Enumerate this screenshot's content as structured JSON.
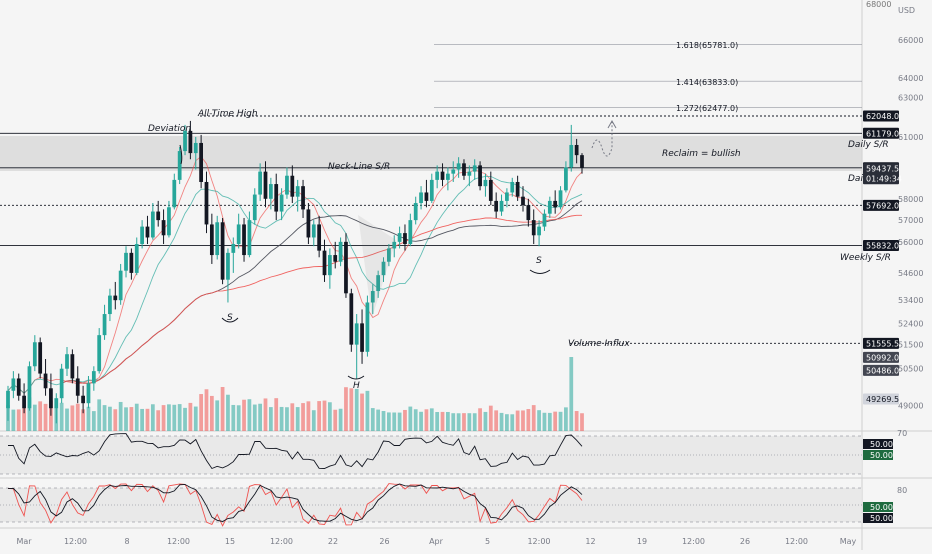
{
  "chart_data": {
    "type": "candlestick",
    "currency": "USD",
    "price_axis": {
      "scale": "log",
      "range": [
        48000,
        68200
      ],
      "ticks": [
        68000,
        66000,
        64000,
        63000,
        61000,
        58000,
        57000,
        56000,
        54600,
        53400,
        52400,
        51500,
        50500,
        49000
      ]
    },
    "time_axis": {
      "labels": [
        "Mar",
        "12:00",
        "8",
        "12:00",
        "15",
        "12:00",
        "22",
        "26",
        "Apr",
        "5",
        "12:00",
        "12",
        "19",
        "12:00",
        "26",
        "12:00",
        "May"
      ]
    },
    "candles_ohlc": [
      [
        48900,
        49800,
        48400,
        49600
      ],
      [
        49600,
        50400,
        49300,
        50100
      ],
      [
        50100,
        50300,
        49200,
        49400
      ],
      [
        49400,
        49900,
        48700,
        48900
      ],
      [
        48900,
        50800,
        48800,
        50600
      ],
      [
        50600,
        51900,
        50400,
        51600
      ],
      [
        51600,
        51800,
        50100,
        50300
      ],
      [
        50300,
        50900,
        49400,
        49700
      ],
      [
        49700,
        50300,
        48600,
        48900
      ],
      [
        48900,
        49500,
        48300,
        49300
      ],
      [
        49300,
        50700,
        49100,
        50500
      ],
      [
        50500,
        51400,
        50200,
        51100
      ],
      [
        51100,
        51300,
        49900,
        50100
      ],
      [
        50100,
        50600,
        49100,
        49400
      ],
      [
        49400,
        49800,
        48700,
        49100
      ],
      [
        49100,
        50200,
        48900,
        49900
      ],
      [
        49900,
        50600,
        49600,
        50400
      ],
      [
        50400,
        52200,
        50300,
        51900
      ],
      [
        51900,
        53200,
        51700,
        52800
      ],
      [
        52800,
        53900,
        52500,
        53600
      ],
      [
        53600,
        54200,
        53000,
        53400
      ],
      [
        53400,
        55000,
        53200,
        54700
      ],
      [
        54700,
        55800,
        54400,
        55500
      ],
      [
        55500,
        55700,
        54300,
        54600
      ],
      [
        54600,
        56200,
        54500,
        55900
      ],
      [
        55900,
        57000,
        55700,
        56700
      ],
      [
        56700,
        57200,
        55900,
        56200
      ],
      [
        56200,
        57800,
        56100,
        57400
      ],
      [
        57400,
        57900,
        56700,
        57000
      ],
      [
        57000,
        57500,
        55900,
        56300
      ],
      [
        56300,
        57900,
        56200,
        57600
      ],
      [
        57600,
        59200,
        57500,
        58900
      ],
      [
        58900,
        60500,
        58700,
        60300
      ],
      [
        60300,
        61600,
        60100,
        61300
      ],
      [
        61300,
        61800,
        59900,
        60200
      ],
      [
        60200,
        61000,
        59400,
        60700
      ],
      [
        60700,
        61100,
        58500,
        58800
      ],
      [
        58800,
        59300,
        56400,
        56800
      ],
      [
        56800,
        57300,
        55000,
        55400
      ],
      [
        55400,
        57200,
        55200,
        56900
      ],
      [
        56900,
        57100,
        54100,
        54300
      ],
      [
        54300,
        55700,
        53300,
        55500
      ],
      [
        55500,
        56200,
        54600,
        55900
      ],
      [
        55900,
        57300,
        55700,
        56800
      ],
      [
        56800,
        57100,
        55100,
        55400
      ],
      [
        55400,
        57400,
        55300,
        57000
      ],
      [
        57000,
        58500,
        56800,
        58200
      ],
      [
        58200,
        59700,
        57900,
        59300
      ],
      [
        59300,
        59800,
        57600,
        58000
      ],
      [
        58000,
        59000,
        57500,
        58700
      ],
      [
        58700,
        59200,
        57000,
        57400
      ],
      [
        57400,
        58500,
        57000,
        58200
      ],
      [
        58200,
        59500,
        58000,
        59100
      ],
      [
        59100,
        59600,
        57800,
        58100
      ],
      [
        58100,
        58900,
        57400,
        58600
      ],
      [
        58600,
        58900,
        57100,
        57500
      ],
      [
        57500,
        57800,
        55900,
        56200
      ],
      [
        56200,
        57000,
        55800,
        56800
      ],
      [
        56800,
        57200,
        55300,
        55600
      ],
      [
        55600,
        56100,
        54200,
        54500
      ],
      [
        54500,
        55700,
        53900,
        55400
      ],
      [
        55400,
        56000,
        54800,
        55100
      ],
      [
        55100,
        56200,
        54900,
        56000
      ],
      [
        56000,
        56400,
        53500,
        53700
      ],
      [
        53700,
        53900,
        51200,
        51500
      ],
      [
        51500,
        52800,
        50100,
        52400
      ],
      [
        52400,
        53000,
        50700,
        51200
      ],
      [
        51200,
        53600,
        51000,
        53300
      ],
      [
        53300,
        54100,
        52800,
        53800
      ],
      [
        53800,
        54700,
        53500,
        54500
      ],
      [
        54500,
        55300,
        54200,
        55100
      ],
      [
        55100,
        55900,
        54900,
        55700
      ],
      [
        55700,
        56300,
        55300,
        56000
      ],
      [
        56000,
        56700,
        55700,
        56400
      ],
      [
        56400,
        56800,
        55600,
        55900
      ],
      [
        55900,
        57300,
        55800,
        57000
      ],
      [
        57000,
        58100,
        56800,
        57800
      ],
      [
        57800,
        58600,
        57500,
        58300
      ],
      [
        58300,
        58900,
        57600,
        57900
      ],
      [
        57900,
        59200,
        57800,
        58900
      ],
      [
        58900,
        59600,
        58500,
        59300
      ],
      [
        59300,
        59700,
        58600,
        58900
      ],
      [
        58900,
        59500,
        58400,
        59200
      ],
      [
        59200,
        59800,
        58800,
        59400
      ],
      [
        59400,
        60000,
        59000,
        59700
      ],
      [
        59700,
        59900,
        58900,
        59100
      ],
      [
        59100,
        59600,
        58600,
        59300
      ],
      [
        59300,
        59900,
        58900,
        59600
      ],
      [
        59600,
        59800,
        58400,
        58600
      ],
      [
        58600,
        59200,
        58100,
        58900
      ],
      [
        58900,
        59300,
        57700,
        57900
      ],
      [
        57900,
        58300,
        57100,
        57400
      ],
      [
        57400,
        58200,
        57200,
        57900
      ],
      [
        57900,
        58500,
        57600,
        58300
      ],
      [
        58300,
        59000,
        58100,
        58800
      ],
      [
        58800,
        59100,
        57900,
        58100
      ],
      [
        58100,
        58600,
        57400,
        57700
      ],
      [
        57700,
        58000,
        56700,
        57000
      ],
      [
        57000,
        57500,
        55900,
        56300
      ],
      [
        56300,
        57000,
        55800,
        56700
      ],
      [
        56700,
        57500,
        56500,
        57300
      ],
      [
        57300,
        58100,
        57100,
        57900
      ],
      [
        57900,
        58400,
        57300,
        57600
      ],
      [
        57600,
        58600,
        57500,
        58400
      ],
      [
        58400,
        59800,
        58300,
        59500
      ],
      [
        59500,
        61600,
        59300,
        60600
      ],
      [
        60600,
        60900,
        59700,
        60100
      ],
      [
        60100,
        60200,
        59200,
        59500
      ]
    ],
    "horizontal_levels": [
      {
        "price": 65781.0,
        "label": "1.618(65781.0)"
      },
      {
        "price": 63833.0,
        "label": "1.414(63833.0)"
      },
      {
        "price": 62477.0,
        "label": "1.272(62477.0)"
      },
      {
        "price": 62048.0,
        "label": "All-Time High"
      },
      {
        "price": 61179.0,
        "label": "Daily S/R"
      },
      {
        "price": 59484.0,
        "label": "Daily S/R"
      },
      {
        "price": 57692.0,
        "label": ""
      },
      {
        "price": 55832.0,
        "label": "Weekly S/R"
      },
      {
        "price": 51555.5,
        "label": "Volume Influx"
      }
    ],
    "price_badges": [
      {
        "text": "68000",
        "color": "#f5f5f5",
        "fg": "#787878"
      },
      {
        "text": "62048.0",
        "color": "#131722",
        "fg": "#ffffff"
      },
      {
        "text": "61179.0",
        "color": "#131722",
        "fg": "#ffffff"
      },
      {
        "text": "59484.0",
        "color": "#131722",
        "fg": "#ffffff"
      },
      {
        "text": "59437.5",
        "color": "#2a2e39",
        "fg": "#ffffff"
      },
      {
        "text": "01:49:34",
        "color": "#2a2e39",
        "fg": "#ffffff"
      },
      {
        "text": "57692.0",
        "color": "#131722",
        "fg": "#ffffff"
      },
      {
        "text": "55832.0",
        "color": "#131722",
        "fg": "#ffffff"
      },
      {
        "text": "51555.5",
        "color": "#131722",
        "fg": "#ffffff"
      },
      {
        "text": "50992.0",
        "color": "#434651",
        "fg": "#ffffff"
      },
      {
        "text": "50486.0",
        "color": "#434651",
        "fg": "#ffffff"
      },
      {
        "text": "49269.5",
        "color": "#d1d4dc",
        "fg": "#131722"
      }
    ],
    "annotations": [
      {
        "text": "Deviation"
      },
      {
        "text": "All-Time High"
      },
      {
        "text": "Neck-Line S/R"
      },
      {
        "text": "Reclaim = bullish"
      },
      {
        "text": "Daily S/R"
      },
      {
        "text": "Daily S/R"
      },
      {
        "text": "Weekly S/R"
      },
      {
        "text": "Volume Influx"
      },
      {
        "text": "S"
      },
      {
        "text": "H"
      },
      {
        "text": "S"
      }
    ],
    "oscillators": {
      "rsi": {
        "axis_ticks": [
          "70",
          "50.00",
          "50.00"
        ]
      },
      "stoch": {
        "axis_ticks": [
          "80",
          "50.00",
          "50.00"
        ]
      }
    },
    "colors": {
      "up": "#26a69a",
      "down": "#131722",
      "ma_red": "#ef5350",
      "ma_black": "#434651",
      "ma_green": "#26a69a",
      "vol_red": "#ef5350",
      "vol_green": "#26a69a",
      "zone": "#d6d6d6"
    },
    "grid": false,
    "legend": "none"
  }
}
